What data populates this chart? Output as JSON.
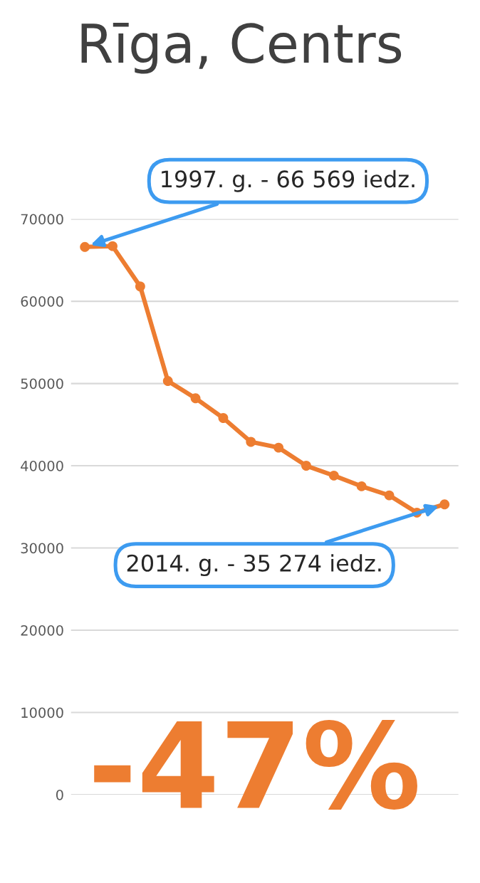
{
  "chart_data": {
    "type": "line",
    "title": "Rīga, Centrs",
    "categories": [
      null,
      null,
      null,
      null,
      null,
      null,
      null,
      null,
      null,
      null,
      null,
      null,
      null,
      null
    ],
    "series": [
      {
        "color": "#ed7d31",
        "values": [
          66600,
          66700,
          61800,
          50300,
          48200,
          45800,
          42900,
          42200,
          40000,
          38800,
          37500,
          36400,
          34300,
          35300
        ]
      }
    ],
    "ylim": [
      0,
      70000
    ],
    "yticks": [
      0,
      10000,
      20000,
      30000,
      40000,
      50000,
      60000,
      70000
    ],
    "grid": "y",
    "tick_labels": "y",
    "marker": "circle",
    "line_style": "solid",
    "annotations": [
      "1997. g. - 66 569 iedz.",
      "2014. g. - 35 274 iedz.",
      "-47%"
    ]
  }
}
